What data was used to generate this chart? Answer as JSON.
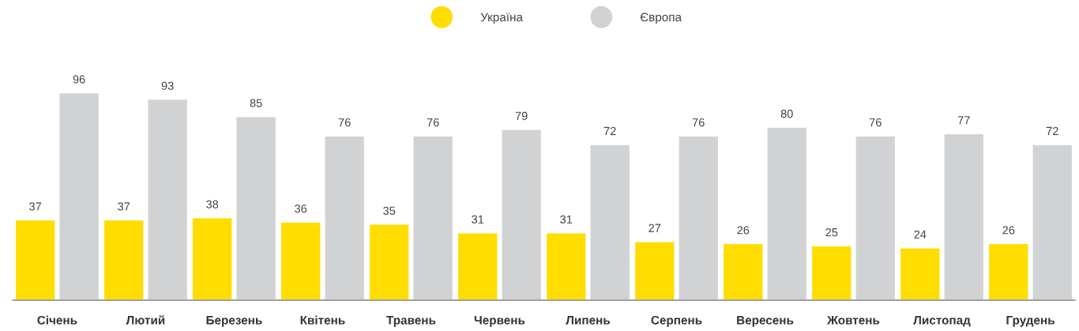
{
  "chart_data": {
    "type": "bar",
    "categories": [
      "Січень",
      "Лютий",
      "Березень",
      "Квітень",
      "Травень",
      "Червень",
      "Липень",
      "Серпень",
      "Вересень",
      "Жовтень",
      "Листопад",
      "Грудень"
    ],
    "series": [
      {
        "name": "Україна",
        "color": "#ffdd00",
        "values": [
          37,
          37,
          38,
          36,
          35,
          31,
          31,
          27,
          26,
          25,
          24,
          26
        ]
      },
      {
        "name": "Європа",
        "color": "#d1d2d4",
        "values": [
          96,
          93,
          85,
          76,
          76,
          79,
          72,
          76,
          80,
          76,
          77,
          72
        ]
      }
    ],
    "data_labels": true,
    "legend": "top",
    "tick_labels": "x"
  }
}
